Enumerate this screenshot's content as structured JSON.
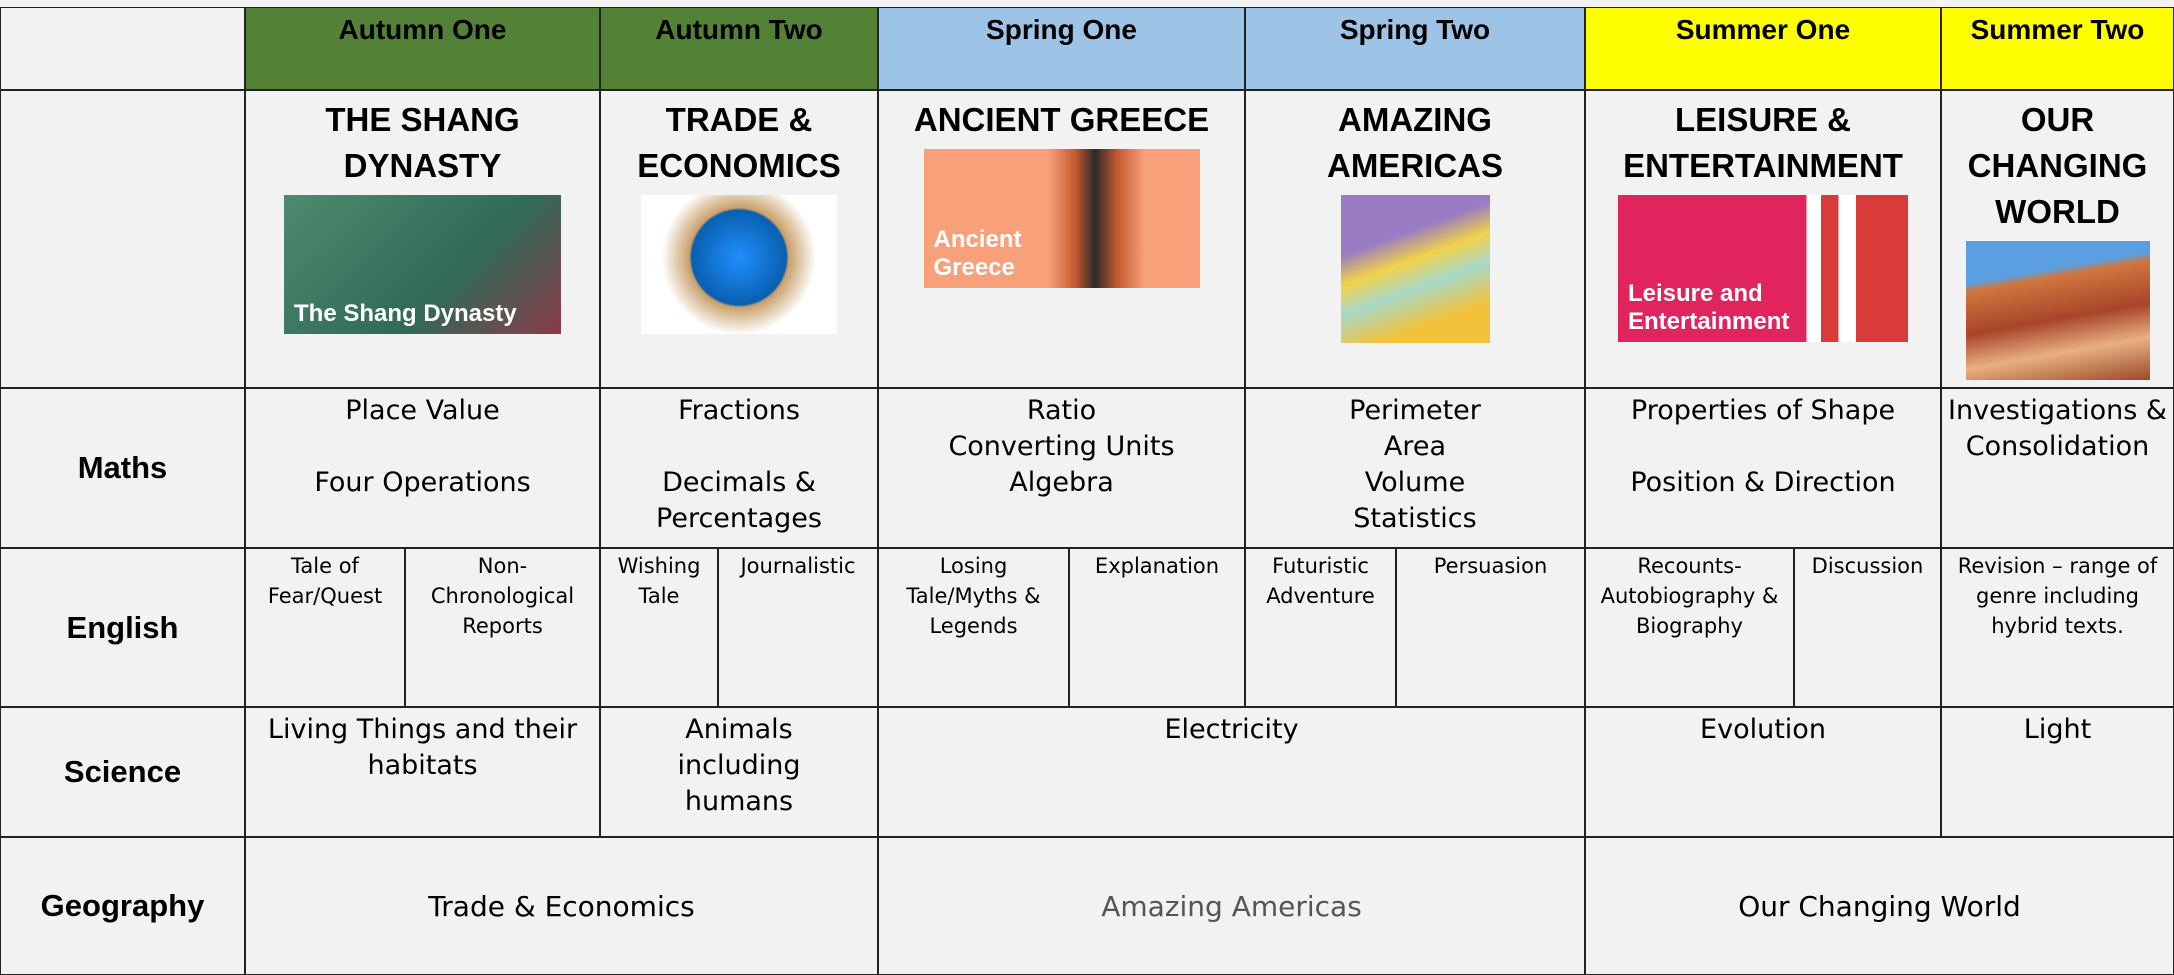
{
  "header": {
    "terms": [
      "Autumn One",
      "Autumn Two",
      "Spring One",
      "Spring Two",
      "Summer One",
      "Summer Two"
    ]
  },
  "topics": [
    {
      "title": "THE SHANG DYNASTY",
      "image_caption": "The Shang Dynasty"
    },
    {
      "title": "TRADE & ECONOMICS"
    },
    {
      "title": "ANCIENT GREECE",
      "image_caption": "Ancient Greece"
    },
    {
      "title": "AMAZING AMERICAS"
    },
    {
      "title": "LEISURE & ENTERTAINMENT",
      "image_caption": "Leisure and Entertainment"
    },
    {
      "title": "OUR CHANGING WORLD"
    }
  ],
  "maths": {
    "subject": "Maths",
    "cells": [
      [
        "Place Value",
        "Four Operations"
      ],
      [
        "Fractions",
        "Decimals & Percentages"
      ],
      [
        "Ratio",
        "Converting Units",
        "Algebra"
      ],
      [
        "Perimeter",
        "Area",
        "Volume",
        "Statistics"
      ],
      [
        "Properties of Shape",
        "Position & Direction"
      ],
      [
        "Investigations & Consolidation"
      ]
    ]
  },
  "english": {
    "subject": "English",
    "cells": [
      "Tale of Fear/Quest",
      "Non-Chronological Reports",
      "Wishing Tale",
      "Journalistic",
      "Losing Tale/Myths & Legends",
      "Explanation",
      "Futuristic Adventure",
      "Persuasion",
      "Recounts-Autobiography & Biography",
      "Discussion",
      "Revision – range of genre including hybrid texts."
    ]
  },
  "science": {
    "subject": "Science",
    "cells": [
      "Living Things and their habitats",
      "Animals including humans",
      "Electricity",
      "Evolution",
      "Light"
    ]
  },
  "geography": {
    "subject": "Geography",
    "cells": [
      "Trade & Economics",
      "Amazing Americas",
      "Our Changing World"
    ]
  }
}
